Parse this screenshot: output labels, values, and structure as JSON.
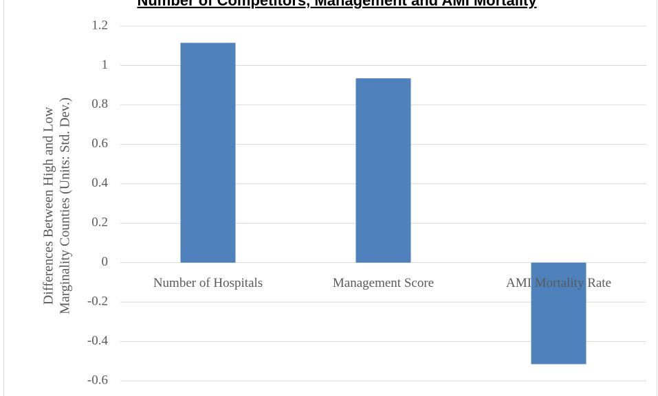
{
  "chart_data": {
    "type": "bar",
    "title": "Number of Competitors, Management and AMI Mortality",
    "ylabel": [
      "Differences Between High and Low",
      "Marginality Counties (Units: Std. Dev.)"
    ],
    "categories": [
      "Number of Hospitals",
      "Management Score",
      "AMI Mortality Rate"
    ],
    "values": [
      1.115,
      0.935,
      -0.515
    ],
    "color": "#4f81bd",
    "ylim": [
      -0.6,
      1.2
    ],
    "yticks": [
      -0.6,
      -0.4,
      -0.2,
      0,
      0.2,
      0.4,
      0.6,
      0.8,
      1,
      1.2
    ],
    "grid": true
  }
}
